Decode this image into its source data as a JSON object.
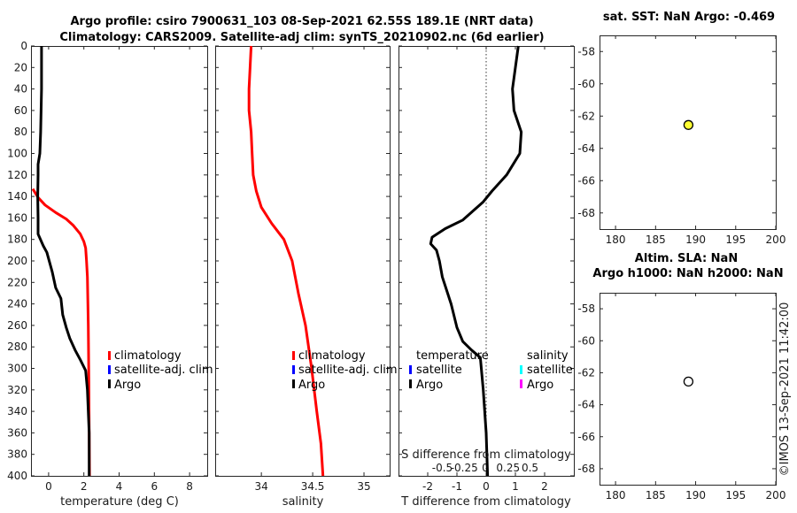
{
  "header": {
    "line1": "Argo profile: csiro 7900631_103 08-Sep-2021 62.55S 189.1E (NRT data)",
    "line2": "Climatology: CARS2009. Satellite-adj clim: synTS_20210902.nc (6d earlier)"
  },
  "side_text": "©IMOS 13-Sep-2021 11:42:00",
  "colors": {
    "climatology": "#ff0000",
    "satellite": "#0000ff",
    "argo": "#000000",
    "satellite_s": "#00ffff",
    "argo_s": "#ff00ff",
    "marker_fill": "#ffff33"
  },
  "chart_data": [
    {
      "type": "line",
      "name": "temperature",
      "xlabel": "temperature (deg C)",
      "xlim": [
        -1,
        9
      ],
      "xticks": [
        "0",
        "2",
        "4",
        "6",
        "8"
      ],
      "xtick_values": [
        0,
        2,
        4,
        6,
        8
      ],
      "ylim": [
        0,
        400
      ],
      "yticks": [
        "0",
        "20",
        "40",
        "60",
        "80",
        "100",
        "120",
        "140",
        "160",
        "180",
        "200",
        "220",
        "240",
        "260",
        "280",
        "300",
        "320",
        "340",
        "360",
        "380",
        "400"
      ],
      "legend": [
        "climatology",
        "satellite-adj. clim",
        "Argo"
      ],
      "series": [
        {
          "name": "climatology",
          "color": "#ff0000",
          "points": [
            [
              -0.9,
              133
            ],
            [
              -0.6,
              141
            ],
            [
              -0.2,
              148
            ],
            [
              0.4,
              155
            ],
            [
              1.0,
              161
            ],
            [
              1.4,
              167
            ],
            [
              1.8,
              175
            ],
            [
              2.0,
              182
            ],
            [
              2.1,
              188
            ],
            [
              2.15,
              200
            ],
            [
              2.2,
              215
            ],
            [
              2.25,
              260
            ],
            [
              2.28,
              310
            ],
            [
              2.3,
              360
            ],
            [
              2.32,
              400
            ]
          ]
        },
        {
          "name": "Argo",
          "color": "#000000",
          "points": [
            [
              -0.4,
              0
            ],
            [
              -0.4,
              40
            ],
            [
              -0.45,
              80
            ],
            [
              -0.5,
              100
            ],
            [
              -0.6,
              110
            ],
            [
              -0.6,
              120
            ],
            [
              -0.62,
              140
            ],
            [
              -0.6,
              160
            ],
            [
              -0.6,
              175
            ],
            [
              -0.3,
              186
            ],
            [
              -0.1,
              192
            ],
            [
              0.2,
              210
            ],
            [
              0.4,
              225
            ],
            [
              0.7,
              235
            ],
            [
              0.8,
              250
            ],
            [
              1.0,
              262
            ],
            [
              1.2,
              272
            ],
            [
              1.5,
              283
            ],
            [
              1.8,
              292
            ],
            [
              2.1,
              302
            ],
            [
              2.2,
              320
            ],
            [
              2.3,
              360
            ],
            [
              2.3,
              400
            ]
          ]
        }
      ]
    },
    {
      "type": "line",
      "name": "salinity",
      "xlabel": "salinity",
      "xlim": [
        33.55,
        35.25
      ],
      "xticks": [
        "34",
        "34.5",
        "35"
      ],
      "xtick_values": [
        34,
        34.5,
        35
      ],
      "ylim": [
        0,
        400
      ],
      "legend": [
        "climatology",
        "satellite-adj. clim",
        "Argo"
      ],
      "series": [
        {
          "name": "climatology",
          "color": "#ff0000",
          "points": [
            [
              33.9,
              0
            ],
            [
              33.89,
              20
            ],
            [
              33.88,
              40
            ],
            [
              33.88,
              60
            ],
            [
              33.9,
              80
            ],
            [
              33.91,
              100
            ],
            [
              33.92,
              120
            ],
            [
              33.95,
              135
            ],
            [
              34.0,
              150
            ],
            [
              34.1,
              165
            ],
            [
              34.22,
              180
            ],
            [
              34.3,
              200
            ],
            [
              34.36,
              230
            ],
            [
              34.43,
              260
            ],
            [
              34.49,
              300
            ],
            [
              34.54,
              340
            ],
            [
              34.58,
              370
            ],
            [
              34.6,
              400
            ]
          ]
        }
      ]
    },
    {
      "type": "line",
      "name": "difference",
      "xlabel": "T difference from climatology",
      "xlim": [
        -3,
        3
      ],
      "xticks": [
        "-2",
        "-1",
        "0",
        "1",
        "2"
      ],
      "xtick_values": [
        -2,
        -1,
        0,
        1,
        2
      ],
      "top_label": "S difference from climatology",
      "top_ticks": [
        "-0.5",
        "-0.25",
        "0",
        "0.25",
        "0.5"
      ],
      "top_tick_values": [
        -0.5,
        -0.25,
        0,
        0.25,
        0.5
      ],
      "top_xlim": [
        -1,
        1
      ],
      "ylim": [
        0,
        400
      ],
      "legend_t_title": "temperature",
      "legend_s_title": "salinity",
      "legend_t": [
        "satellite",
        "Argo"
      ],
      "legend_s": [
        "satellite",
        "Argo"
      ],
      "series": [
        {
          "name": "T diff Argo",
          "color": "#000000",
          "points": [
            [
              1.1,
              0
            ],
            [
              1.0,
              20
            ],
            [
              0.9,
              40
            ],
            [
              0.95,
              60
            ],
            [
              1.2,
              80
            ],
            [
              1.15,
              100
            ],
            [
              0.7,
              120
            ],
            [
              0.2,
              135
            ],
            [
              -0.1,
              145
            ],
            [
              -0.8,
              162
            ],
            [
              -1.4,
              170
            ],
            [
              -1.85,
              178
            ],
            [
              -1.9,
              184
            ],
            [
              -1.7,
              190
            ],
            [
              -1.6,
              200
            ],
            [
              -1.5,
              215
            ],
            [
              -1.2,
              240
            ],
            [
              -1.0,
              262
            ],
            [
              -0.8,
              275
            ],
            [
              -0.5,
              283
            ],
            [
              -0.2,
              290
            ],
            [
              -0.1,
              320
            ],
            [
              0.0,
              360
            ],
            [
              0.05,
              400
            ]
          ]
        }
      ]
    },
    {
      "type": "scatter",
      "name": "sst-map",
      "title": "sat. SST: NaN Argo: -0.469",
      "xlim": [
        178,
        200
      ],
      "ylim": [
        -69,
        -57
      ],
      "xticks": [
        "180",
        "185",
        "190",
        "195",
        "200"
      ],
      "xtick_values": [
        180,
        185,
        190,
        195,
        200
      ],
      "yticks": [
        "-58",
        "-60",
        "-62",
        "-64",
        "-66",
        "-68"
      ],
      "ytick_values": [
        -58,
        -60,
        -62,
        -64,
        -66,
        -68
      ],
      "points": [
        {
          "lon": 189.1,
          "lat": -62.55,
          "fill": "#ffff33"
        }
      ]
    },
    {
      "type": "scatter",
      "name": "sla-map",
      "title1": "Altim. SLA: NaN",
      "title2": "Argo h1000: NaN h2000: NaN",
      "xlim": [
        178,
        200
      ],
      "ylim": [
        -69,
        -57
      ],
      "xticks": [
        "180",
        "185",
        "190",
        "195",
        "200"
      ],
      "xtick_values": [
        180,
        185,
        190,
        195,
        200
      ],
      "yticks": [
        "-58",
        "-60",
        "-62",
        "-64",
        "-66",
        "-68"
      ],
      "ytick_values": [
        -58,
        -60,
        -62,
        -64,
        -66,
        -68
      ],
      "points": [
        {
          "lon": 189.1,
          "lat": -62.55,
          "fill": "#ffffff"
        }
      ]
    }
  ]
}
